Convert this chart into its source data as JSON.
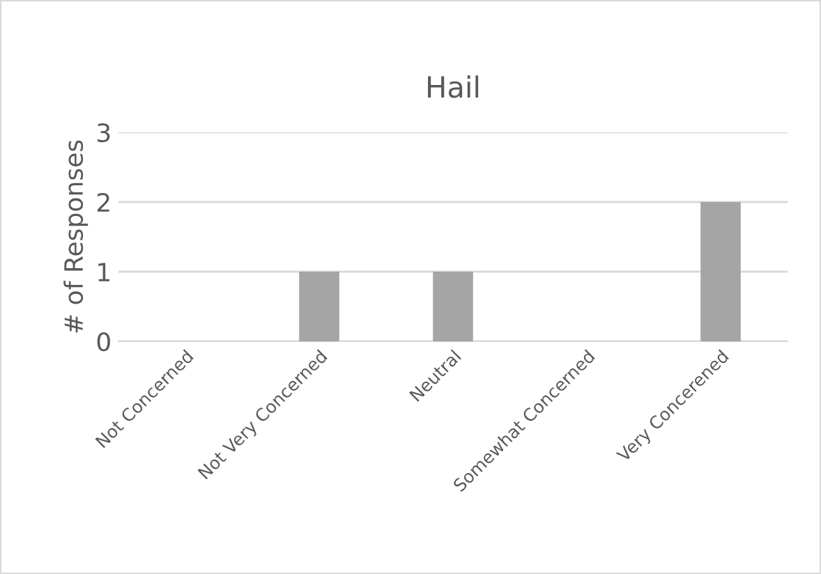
{
  "chart_data": {
    "type": "bar",
    "title": "Hail",
    "ylabel": "# of Responses",
    "categories": [
      "Not Concerned",
      "Not Very Concerned",
      "Neutral",
      "Somewhat Concerned",
      "Very Concerened"
    ],
    "values": [
      0,
      1,
      1,
      0,
      2
    ],
    "color": "#a5a5a5",
    "ylim": [
      0,
      3
    ],
    "yticks": [
      0,
      1,
      2,
      3
    ],
    "grid": "y",
    "legend": false
  }
}
